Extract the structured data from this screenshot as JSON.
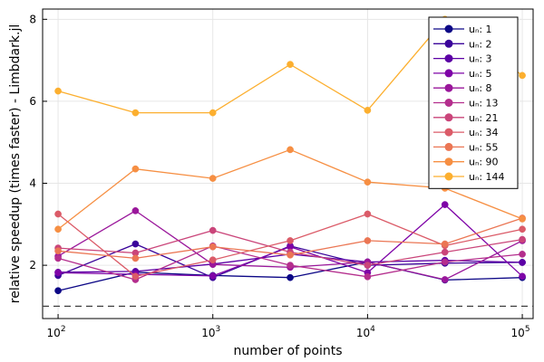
{
  "chart_data": {
    "type": "line",
    "title": "",
    "xlabel": "number of points",
    "ylabel": "relative speedup (times faster) - Limbdark.jl",
    "xscale": "log10",
    "xlim_log10": [
      1.9,
      5.07
    ],
    "ylim": [
      0.7,
      8.25
    ],
    "x": [
      100,
      316.23,
      1000,
      3162.28,
      10000,
      31622.78,
      100000
    ],
    "xticks": [
      {
        "log": 2,
        "base": "10",
        "exp": "2"
      },
      {
        "log": 3,
        "base": "10",
        "exp": "3"
      },
      {
        "log": 4,
        "base": "10",
        "exp": "4"
      },
      {
        "log": 5,
        "base": "10",
        "exp": "5"
      }
    ],
    "yticks": [
      2,
      4,
      6,
      8
    ],
    "reference_line": {
      "y": 1.0,
      "style": "dashed",
      "color": "#404040"
    },
    "grid": true,
    "legend_position": "top-right",
    "series": [
      {
        "name": "uₙ: 1",
        "color": "#0c0786",
        "values": [
          1.38,
          1.83,
          1.75,
          1.7,
          2.08,
          1.64,
          1.7
        ]
      },
      {
        "name": "uₙ: 2",
        "color": "#3a049a",
        "values": [
          1.75,
          2.52,
          1.7,
          2.47,
          2.0,
          2.05,
          2.07
        ]
      },
      {
        "name": "uₙ: 3",
        "color": "#5c00a5",
        "values": [
          1.83,
          1.85,
          2.03,
          2.27,
          2.08,
          2.12,
          2.07
        ]
      },
      {
        "name": "uₙ: 5",
        "color": "#7e03a7",
        "values": [
          1.82,
          1.78,
          1.74,
          2.45,
          1.82,
          3.48,
          1.73
        ]
      },
      {
        "name": "uₙ: 8",
        "color": "#9a179b",
        "values": [
          2.22,
          3.33,
          2.02,
          1.95,
          2.08,
          1.65,
          2.6
        ]
      },
      {
        "name": "uₙ: 13",
        "color": "#b42e8d",
        "values": [
          2.17,
          1.65,
          2.47,
          2.0,
          1.72,
          2.08,
          2.27
        ]
      },
      {
        "name": "uₙ: 21",
        "color": "#ca457a",
        "values": [
          2.42,
          2.3,
          2.85,
          2.32,
          2.0,
          2.32,
          2.63
        ]
      },
      {
        "name": "uₙ: 34",
        "color": "#db5b68",
        "values": [
          3.25,
          1.73,
          2.13,
          2.6,
          3.25,
          2.48,
          2.88
        ]
      },
      {
        "name": "uₙ: 55",
        "color": "#eb7654",
        "values": [
          2.35,
          2.17,
          2.45,
          2.25,
          2.6,
          2.52,
          3.15
        ]
      },
      {
        "name": "uₙ: 90",
        "color": "#f68f43",
        "values": [
          2.88,
          4.35,
          4.12,
          4.82,
          4.03,
          3.88,
          3.13
        ]
      },
      {
        "name": "uₙ: 144",
        "color": "#fcaf2f",
        "values": [
          6.25,
          5.72,
          5.72,
          6.9,
          5.78,
          8.0,
          6.63
        ]
      }
    ]
  }
}
